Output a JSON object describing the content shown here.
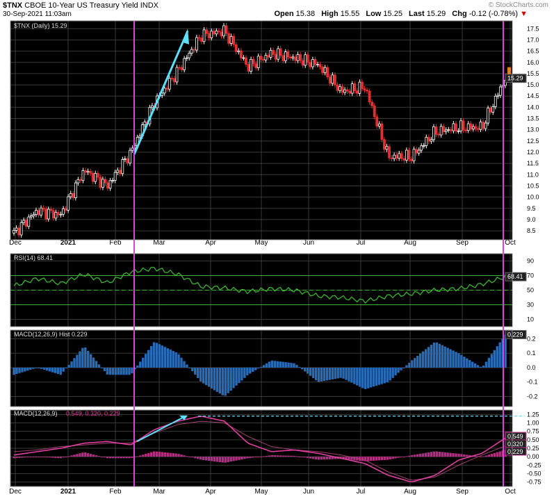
{
  "header": {
    "symbol": "$TNX",
    "name": "CBOE 10-Year US Treasury Yield",
    "exchange": "INDX",
    "datetime": "30-Sep-2021 11:03am",
    "logo": "© StockCharts.com",
    "quote": {
      "open_label": "Open",
      "open": "15.38",
      "high_label": "High",
      "high": "15.55",
      "low_label": "Low",
      "low": "15.25",
      "last_label": "Last",
      "last": "15.29",
      "chg_label": "Chg",
      "chg": "-0.12 (-0.78%)",
      "down_marker": "▼"
    }
  },
  "colors": {
    "background": "#000000",
    "grid": "#3a3a3a",
    "candle_up": "#ffffff",
    "candle_down": "#e03030",
    "vline": "#e040e0",
    "arrow": "#5de0ff",
    "rsi": "#3cb531",
    "macd_hist": "#2a6bb5",
    "macd_line": "#e040a0",
    "last_box": "#e08020"
  },
  "months": [
    "Dec",
    "2021",
    "Feb",
    "Mar",
    "Apr",
    "May",
    "Jun",
    "Jul",
    "Aug",
    "Sep",
    "Oct"
  ],
  "price_panel": {
    "legend": "$TNX (Daily) 15.29",
    "ticks": [
      "17.5",
      "17.0",
      "16.5",
      "16.0",
      "15.5",
      "15.0",
      "14.5",
      "14.0",
      "13.5",
      "13.0",
      "12.5",
      "12.0",
      "11.5",
      "11.0",
      "10.5",
      "10.0",
      "9.5",
      "9.0",
      "8.5"
    ],
    "last_label": "15.29"
  },
  "rsi_panel": {
    "legend": "RSI(14) 68.41",
    "ticks": [
      "90",
      "70",
      "50",
      "30",
      "10"
    ],
    "last_label": "68.41"
  },
  "macdhist_panel": {
    "legend": "MACD(12,26,9) Hist 0.229",
    "ticks": [
      "0.2",
      "0.1",
      "0.0",
      "-0.1",
      "-0.2"
    ],
    "last_label": "0.229"
  },
  "macd_panel": {
    "legend_prefix": "MACD(12,26,9)",
    "legend_values": "0.549, 0.320, 0.229",
    "ticks": [
      "1.25",
      "1.00",
      "0.75",
      "0.50",
      "0.25",
      "0.00",
      "-0.25",
      "-0.50",
      "-0.75"
    ],
    "labels": [
      "0.549",
      "0.320",
      "0.229"
    ]
  },
  "chart_data": {
    "type": "line",
    "title": "$TNX CBOE 10-Year US Treasury Yield INDX",
    "x_range": [
      "2020-12-01",
      "2021-09-30"
    ],
    "price_ylim": [
      8.5,
      17.5
    ],
    "price": {
      "dates": [
        "Dec-01",
        "Dec-15",
        "Jan-01",
        "Jan-12",
        "Jan-28",
        "Feb-12",
        "Feb-25",
        "Mar-05",
        "Mar-18",
        "Mar-30",
        "Apr-15",
        "Apr-30",
        "May-15",
        "May-31",
        "Jun-15",
        "Jun-30",
        "Jul-19",
        "Aug-04",
        "Aug-16",
        "Aug-31",
        "Sep-15",
        "Sep-30"
      ],
      "close": [
        8.4,
        9.4,
        9.2,
        11.2,
        10.5,
        12.0,
        14.2,
        15.6,
        17.2,
        17.4,
        15.8,
        16.4,
        16.2,
        15.9,
        14.7,
        14.9,
        11.8,
        11.8,
        12.9,
        13.1,
        13.1,
        15.29
      ]
    },
    "annotations": [
      "vertical line mid-Feb",
      "vertical line late Sep",
      "trend arrow Feb 11.9 to Mar 17.5",
      "MACD arrow to peak 1.20 with dashed level"
    ],
    "rsi_ylim": [
      10,
      90
    ],
    "rsi": [
      56,
      66,
      59,
      72,
      60,
      75,
      80,
      72,
      55,
      53,
      48,
      52,
      50,
      42,
      40,
      35,
      42,
      45,
      50,
      52,
      58,
      68.41
    ],
    "macd_hist_ylim": [
      -0.25,
      0.25
    ],
    "macd_hist": [
      -0.05,
      0.0,
      -0.05,
      0.15,
      -0.05,
      -0.05,
      0.18,
      0.1,
      -0.1,
      -0.2,
      -0.05,
      0.05,
      0.03,
      -0.1,
      -0.07,
      -0.15,
      -0.1,
      0.05,
      0.18,
      0.1,
      0.0,
      0.229
    ],
    "macd_ylim": [
      -0.85,
      1.35
    ],
    "macd": [
      0.05,
      0.15,
      0.25,
      0.4,
      0.45,
      0.35,
      0.8,
      1.05,
      1.2,
      1.05,
      0.4,
      0.15,
      0.2,
      0.1,
      -0.05,
      -0.2,
      -0.55,
      -0.75,
      -0.55,
      -0.1,
      0.1,
      0.549
    ],
    "signal": [
      0.15,
      0.2,
      0.3,
      0.35,
      0.4,
      0.4,
      0.7,
      0.95,
      1.05,
      1.0,
      0.6,
      0.3,
      0.2,
      0.15,
      0.05,
      -0.1,
      -0.45,
      -0.7,
      -0.6,
      -0.25,
      0.05,
      0.32
    ]
  }
}
